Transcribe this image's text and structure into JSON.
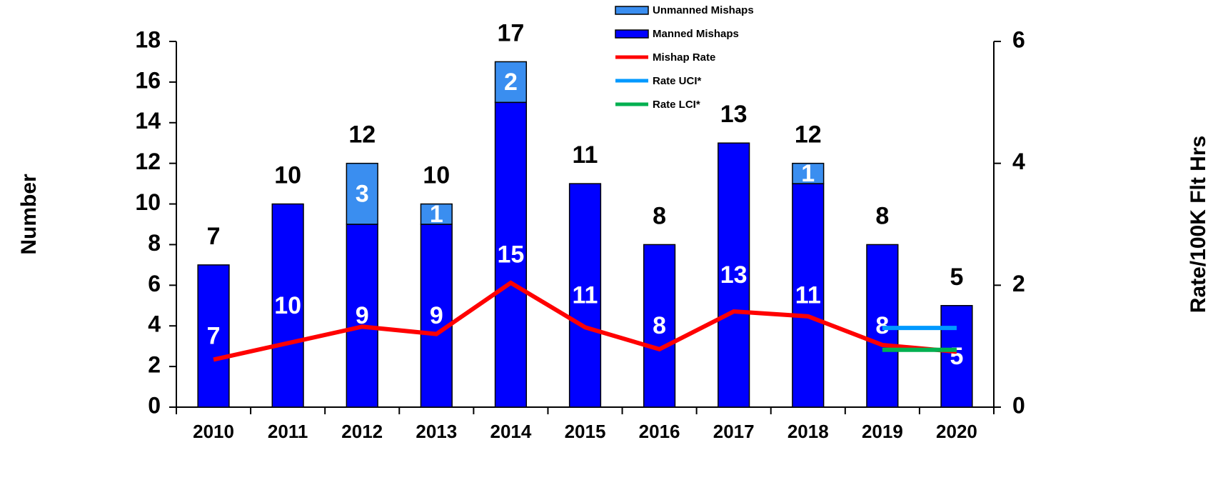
{
  "chart_data": {
    "type": "bar",
    "stacked": true,
    "categories": [
      "2010",
      "2011",
      "2012",
      "2013",
      "2014",
      "2015",
      "2016",
      "2017",
      "2018",
      "2019",
      "2020"
    ],
    "series": [
      {
        "name": "Unmanned Mishaps",
        "type": "bar",
        "color": "#3a8ef0",
        "values": [
          null,
          null,
          3,
          1,
          2,
          null,
          null,
          null,
          1,
          null,
          null
        ]
      },
      {
        "name": "Manned Mishaps",
        "type": "bar",
        "color": "#0000ff",
        "values": [
          7,
          10,
          9,
          9,
          15,
          11,
          8,
          13,
          11,
          8,
          5
        ]
      },
      {
        "name": "Mishap Rate",
        "type": "line",
        "axis": "y2",
        "color": "#ff0000",
        "values": [
          0.78,
          1.05,
          1.32,
          1.2,
          2.04,
          1.31,
          0.95,
          1.57,
          1.49,
          1.02,
          0.91
        ]
      },
      {
        "name": "Rate UCI*",
        "type": "line",
        "axis": "y2",
        "color": "#0099ff",
        "values": [
          null,
          null,
          null,
          null,
          null,
          null,
          null,
          null,
          null,
          1.3,
          1.3
        ]
      },
      {
        "name": "Rate LCI*",
        "type": "line",
        "axis": "y2",
        "color": "#00b050",
        "values": [
          null,
          null,
          null,
          null,
          null,
          null,
          null,
          null,
          null,
          0.94,
          0.94
        ]
      }
    ],
    "total_labels": [
      "7",
      "10",
      "12",
      "10",
      "17",
      "11",
      "8",
      "13",
      "12",
      "8",
      "5"
    ],
    "ylabel": "Number",
    "y2label": "Rate/100K Flt Hrs",
    "ylim": [
      0,
      18
    ],
    "yticks": [
      0,
      2,
      4,
      6,
      8,
      10,
      12,
      14,
      16,
      18
    ],
    "y2lim": [
      0,
      6
    ],
    "y2ticks": [
      0,
      2,
      4,
      6
    ],
    "legend": "top"
  }
}
